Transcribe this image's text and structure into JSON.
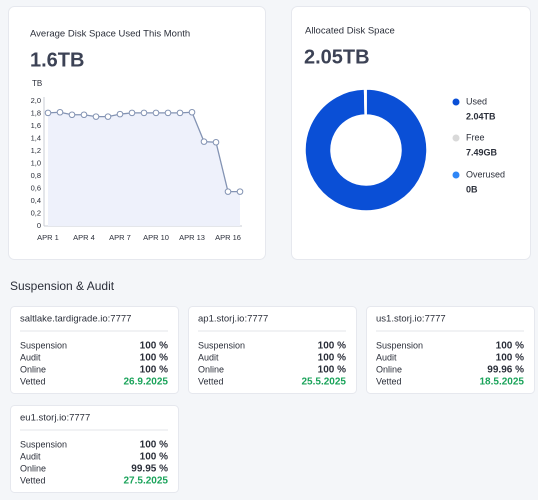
{
  "chart_data": [
    {
      "type": "line",
      "title": "Average Disk Space Used This Month",
      "headline": "1.6TB",
      "y_label": "TB",
      "categories": [
        "APR 1",
        null,
        null,
        "APR 4",
        null,
        null,
        "APR 7",
        null,
        null,
        "APR 10",
        null,
        null,
        "APR 13",
        null,
        null,
        "APR 16",
        null
      ],
      "values": [
        1.81,
        1.82,
        1.78,
        1.78,
        1.75,
        1.75,
        1.79,
        1.81,
        1.81,
        1.81,
        1.81,
        1.81,
        1.82,
        1.35,
        1.34,
        0.55,
        0.55
      ],
      "color": "#8393b3",
      "fill_color": "#eef1fb",
      "ylim": [
        0,
        2.0
      ],
      "yticks": [
        0,
        {
          "value": 0.2,
          "label": "0,2"
        },
        {
          "value": 0.4,
          "label": "0,4"
        },
        {
          "value": 0.6,
          "label": "0,6"
        },
        {
          "value": 0.8,
          "label": "0,8"
        },
        {
          "value": 1.0,
          "label": "1,0"
        },
        {
          "value": 1.2,
          "label": "1,2"
        },
        {
          "value": 1.4,
          "label": "1,4"
        },
        {
          "value": 1.6,
          "label": "1,6"
        },
        {
          "value": 1.8,
          "label": "1,8"
        },
        {
          "value": 2.0,
          "label": "2,0"
        }
      ],
      "grid": false
    },
    {
      "type": "pie",
      "title": "Allocated Disk Space",
      "headline": "2.05TB",
      "categories": [
        "Used",
        "Free",
        "Overused"
      ],
      "values": [
        2040,
        7.49,
        0
      ],
      "value_labels": [
        "2.04TB",
        "7.49GB",
        "0B"
      ],
      "colors": [
        "#0a4fd6",
        "#d9d9d9",
        "#2f86f6"
      ],
      "donut": true
    }
  ],
  "section_title": "Suspension & Audit",
  "satellites": [
    {
      "name": "saltlake.tardigrade.io:7777",
      "rows": [
        {
          "label": "Suspension",
          "value": "100 %"
        },
        {
          "label": "Audit",
          "value": "100 %"
        },
        {
          "label": "Online",
          "value": "100 %"
        },
        {
          "label": "Vetted",
          "value": "26.9.2025"
        }
      ]
    },
    {
      "name": "ap1.storj.io:7777",
      "rows": [
        {
          "label": "Suspension",
          "value": "100 %"
        },
        {
          "label": "Audit",
          "value": "100 %"
        },
        {
          "label": "Online",
          "value": "100 %"
        },
        {
          "label": "Vetted",
          "value": "25.5.2025"
        }
      ]
    },
    {
      "name": "us1.storj.io:7777",
      "rows": [
        {
          "label": "Suspension",
          "value": "100 %"
        },
        {
          "label": "Audit",
          "value": "100 %"
        },
        {
          "label": "Online",
          "value": "99.96 %"
        },
        {
          "label": "Vetted",
          "value": "18.5.2025"
        }
      ]
    },
    {
      "name": "eu1.storj.io:7777",
      "rows": [
        {
          "label": "Suspension",
          "value": "100 %"
        },
        {
          "label": "Audit",
          "value": "100 %"
        },
        {
          "label": "Online",
          "value": "99.95 %"
        },
        {
          "label": "Vetted",
          "value": "27.5.2025"
        }
      ]
    }
  ]
}
